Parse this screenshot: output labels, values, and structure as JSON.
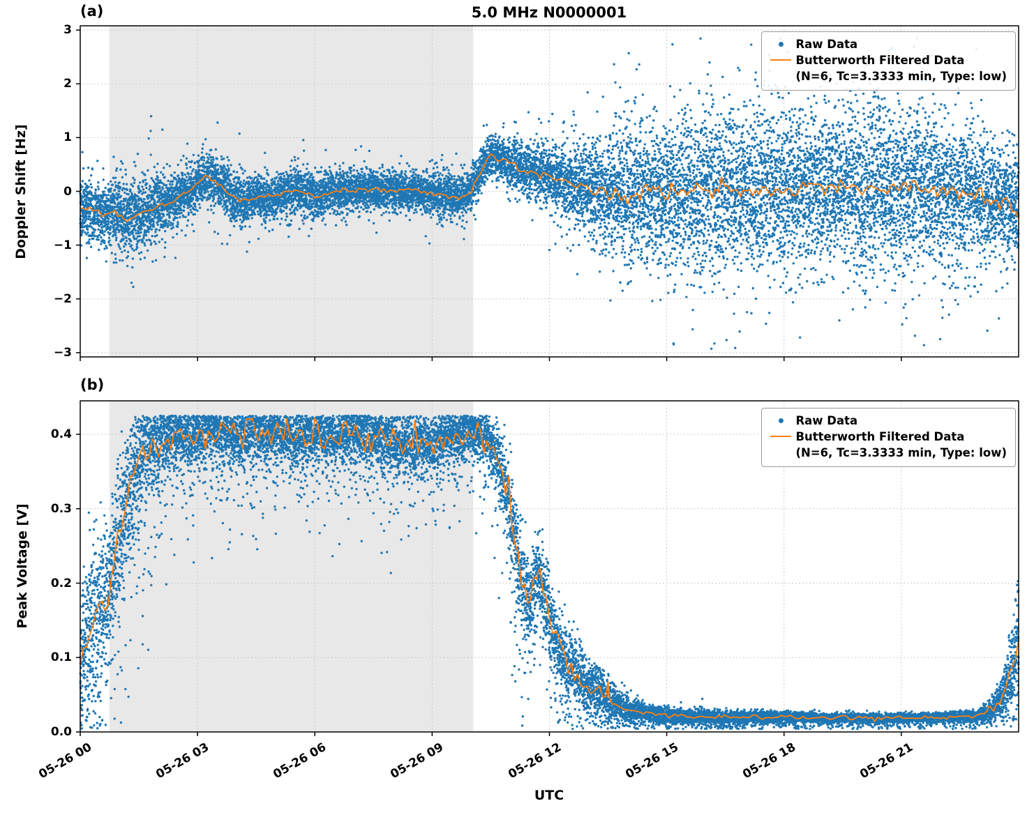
{
  "figure": {
    "title": "5.0 MHz N0000001",
    "xlabel": "UTC"
  },
  "legend": {
    "raw_label": "Raw Data",
    "filtered_label": "Butterworth Filtered Data",
    "filtered_params": "(N=6, Tc=3.3333 min, Type: low)"
  },
  "colors": {
    "raw": "#1f77b4",
    "filtered": "#ff7f0e",
    "shade": "#e8e8e8",
    "grid": "#c9c9c9",
    "spine": "#000000"
  },
  "chart_data": [
    {
      "id": "doppler-shift",
      "type": "scatter",
      "panel_label": "(a)",
      "title": "5.0 MHz N0000001",
      "ylabel": "Doppler Shift [Hz]",
      "x_units": "hours_after_05-26_00:00_UTC",
      "xlim": [
        0,
        24
      ],
      "ylim": [
        -3.08,
        3.08
      ],
      "xticks": [
        0,
        3,
        6,
        9,
        12,
        15,
        18,
        21
      ],
      "xtick_labels": [
        "05-26 00",
        "05-26 03",
        "05-26 06",
        "05-26 09",
        "05-26 12",
        "05-26 15",
        "05-26 18",
        "05-26 21"
      ],
      "yticks": [
        -3,
        -2,
        -1,
        0,
        1,
        2,
        3
      ],
      "ytick_labels": [
        "−3",
        "−2",
        "−1",
        "0",
        "1",
        "2",
        "3"
      ],
      "shaded_region": [
        0.75,
        10.05
      ],
      "series": [
        {
          "name": "Raw Data",
          "type": "scatter",
          "color": "#1f77b4",
          "note": "dense noisy band centered on the filtered line; spread grows after ~13:00 UTC; generated from scatter_band"
        },
        {
          "name": "Butterworth Filtered Data (N=6, Tc=3.3333 min, Type: low)",
          "type": "line",
          "color": "#ff7f0e",
          "x": [
            0,
            0.3,
            0.6,
            0.9,
            1.2,
            1.5,
            1.8,
            2.1,
            2.4,
            2.7,
            3.0,
            3.2,
            3.4,
            3.6,
            3.8,
            4.0,
            4.3,
            4.6,
            4.9,
            5.2,
            5.5,
            5.8,
            6.1,
            6.4,
            6.7,
            7.0,
            7.3,
            7.6,
            7.9,
            8.2,
            8.5,
            8.8,
            9.1,
            9.4,
            9.7,
            9.9,
            10.1,
            10.3,
            10.5,
            10.7,
            10.9,
            11.1,
            11.3,
            11.6,
            11.9,
            12.2,
            12.5,
            12.8,
            13.1,
            13.4,
            13.7,
            14.0,
            14.5,
            15.0,
            15.5,
            16.0,
            16.5,
            17.0,
            17.5,
            18.0,
            18.5,
            19.0,
            19.5,
            20.0,
            20.5,
            21.0,
            21.5,
            22.0,
            22.5,
            23.0,
            23.5,
            24
          ],
          "y": [
            -0.28,
            -0.32,
            -0.42,
            -0.38,
            -0.52,
            -0.45,
            -0.32,
            -0.25,
            -0.18,
            -0.05,
            0.12,
            0.28,
            0.2,
            0.1,
            -0.02,
            -0.12,
            -0.15,
            -0.1,
            -0.12,
            -0.05,
            0.02,
            -0.05,
            -0.1,
            -0.02,
            0,
            0.02,
            0.05,
            0.02,
            0,
            0.02,
            0,
            -0.02,
            -0.05,
            -0.1,
            -0.12,
            -0.05,
            0.15,
            0.45,
            0.68,
            0.6,
            0.55,
            0.5,
            0.42,
            0.35,
            0.3,
            0.22,
            0.15,
            0.1,
            0.02,
            -0.05,
            0,
            -0.05,
            0,
            -0.05,
            0.05,
            0,
            0.1,
            -0.05,
            0.05,
            0,
            0.1,
            0.05,
            0.15,
            0,
            0.1,
            0.05,
            0.1,
            0,
            -0.05,
            -0.1,
            -0.2,
            -0.32
          ]
        }
      ],
      "scatter_band": {
        "x": [
          0,
          0.5,
          1.0,
          1.5,
          2.0,
          2.5,
          3.0,
          3.5,
          4.0,
          5,
          6,
          7,
          8,
          9,
          9.6,
          10.0,
          10.4,
          10.8,
          11.2,
          11.6,
          12.0,
          12.4,
          12.8,
          13.2,
          13.6,
          14.0,
          14.5,
          15,
          16,
          17,
          18,
          19,
          20,
          21,
          22,
          22.7,
          23.3,
          24
        ],
        "sigma": [
          0.28,
          0.25,
          0.33,
          0.32,
          0.26,
          0.24,
          0.22,
          0.22,
          0.22,
          0.2,
          0.2,
          0.18,
          0.18,
          0.18,
          0.2,
          0.18,
          0.18,
          0.2,
          0.22,
          0.25,
          0.28,
          0.33,
          0.38,
          0.45,
          0.52,
          0.58,
          0.63,
          0.68,
          0.72,
          0.72,
          0.72,
          0.72,
          0.72,
          0.7,
          0.68,
          0.62,
          0.55,
          0.42
        ],
        "points": 15000,
        "tail_frac": 0.08,
        "tail_scale": 2.0,
        "tail_sign": 0,
        "clip": [
          -2.95,
          2.85
        ]
      },
      "line_jitter": [
        {
          "x0": 0,
          "x1": 10,
          "amp": 0.03
        },
        {
          "x0": 10,
          "x1": 12.5,
          "amp": 0.035
        },
        {
          "x0": 12.5,
          "x1": 24,
          "amp": 0.085
        }
      ]
    },
    {
      "id": "peak-voltage",
      "type": "scatter",
      "panel_label": "(b)",
      "ylabel": "Peak Voltage [V]",
      "x_units": "hours_after_05-26_00:00_UTC",
      "xlim": [
        0,
        24
      ],
      "ylim": [
        0,
        0.445
      ],
      "xticks": [
        0,
        3,
        6,
        9,
        12,
        15,
        18,
        21
      ],
      "xtick_labels": [
        "05-26 00",
        "05-26 03",
        "05-26 06",
        "05-26 09",
        "05-26 12",
        "05-26 15",
        "05-26 18",
        "05-26 21"
      ],
      "yticks": [
        0,
        0.1,
        0.2,
        0.3,
        0.4
      ],
      "ytick_labels": [
        "0.0",
        "0.1",
        "0.2",
        "0.3",
        "0.4"
      ],
      "shaded_region": [
        0.75,
        10.05
      ],
      "series": [
        {
          "name": "Raw Data",
          "type": "scatter",
          "color": "#1f77b4",
          "note": "rises from ~0.1 V at 00:00 to a saturated plateau ~0.36-0.425 V between ~01:30 and ~10:30, drops to ~0.02 V by ~14:00, flat until ~23:00, rises again at day end; generated from scatter_band"
        },
        {
          "name": "Butterworth Filtered Data (N=6, Tc=3.3333 min, Type: low)",
          "type": "line",
          "color": "#ff7f0e",
          "x": [
            0,
            0.2,
            0.4,
            0.6,
            0.8,
            1.0,
            1.2,
            1.4,
            1.6,
            1.8,
            2.0,
            2.5,
            3.0,
            3.5,
            4.0,
            4.5,
            5.0,
            5.5,
            6.0,
            6.5,
            7.0,
            7.5,
            8.0,
            8.5,
            9.0,
            9.5,
            10.0,
            10.3,
            10.6,
            10.9,
            11.1,
            11.3,
            11.5,
            11.7,
            11.9,
            12.1,
            12.4,
            12.7,
            13.0,
            13.3,
            13.6,
            14.0,
            14.5,
            15.0,
            15.5,
            16.0,
            17.0,
            18.0,
            19.0,
            20.0,
            21.0,
            22.0,
            22.5,
            23.0,
            23.3,
            23.6,
            23.8,
            24
          ],
          "y": [
            0.09,
            0.13,
            0.16,
            0.17,
            0.21,
            0.27,
            0.31,
            0.35,
            0.375,
            0.385,
            0.39,
            0.4,
            0.4,
            0.405,
            0.4,
            0.4,
            0.4,
            0.395,
            0.4,
            0.4,
            0.405,
            0.4,
            0.39,
            0.385,
            0.39,
            0.4,
            0.405,
            0.4,
            0.38,
            0.33,
            0.27,
            0.2,
            0.18,
            0.22,
            0.18,
            0.13,
            0.1,
            0.08,
            0.06,
            0.05,
            0.04,
            0.03,
            0.025,
            0.022,
            0.021,
            0.02,
            0.02,
            0.02,
            0.019,
            0.019,
            0.019,
            0.02,
            0.02,
            0.022,
            0.03,
            0.05,
            0.08,
            0.12
          ]
        }
      ],
      "scatter_band": {
        "x": [
          0,
          0.3,
          0.6,
          1.0,
          1.4,
          1.8,
          2.2,
          3,
          4,
          5,
          6,
          7,
          8,
          9,
          10,
          10.4,
          10.8,
          11.2,
          11.6,
          12,
          12.4,
          12.8,
          13.2,
          13.6,
          14,
          14.5,
          15,
          16,
          17,
          18,
          19,
          20,
          21,
          22,
          23,
          23.4,
          23.7,
          24
        ],
        "sigma": [
          0.05,
          0.055,
          0.055,
          0.05,
          0.042,
          0.032,
          0.024,
          0.02,
          0.02,
          0.02,
          0.02,
          0.02,
          0.02,
          0.02,
          0.018,
          0.018,
          0.025,
          0.03,
          0.03,
          0.028,
          0.025,
          0.022,
          0.018,
          0.014,
          0.009,
          0.006,
          0.005,
          0.005,
          0.004,
          0.004,
          0.003,
          0.003,
          0.003,
          0.003,
          0.004,
          0.008,
          0.02,
          0.045
        ],
        "points": 15000,
        "tail_frac": 0.12,
        "tail_scale": 3.0,
        "tail_sign": -1,
        "clip": [
          0.004,
          0.425
        ]
      },
      "line_jitter": [
        {
          "x0": 0,
          "x1": 1.6,
          "amp": 0.008
        },
        {
          "x0": 1.6,
          "x1": 10.6,
          "amp": 0.011
        },
        {
          "x0": 10.6,
          "x1": 13.5,
          "amp": 0.01
        },
        {
          "x0": 13.5,
          "x1": 23.2,
          "amp": 0.0015
        },
        {
          "x0": 23.2,
          "x1": 24,
          "amp": 0.008
        }
      ]
    }
  ]
}
